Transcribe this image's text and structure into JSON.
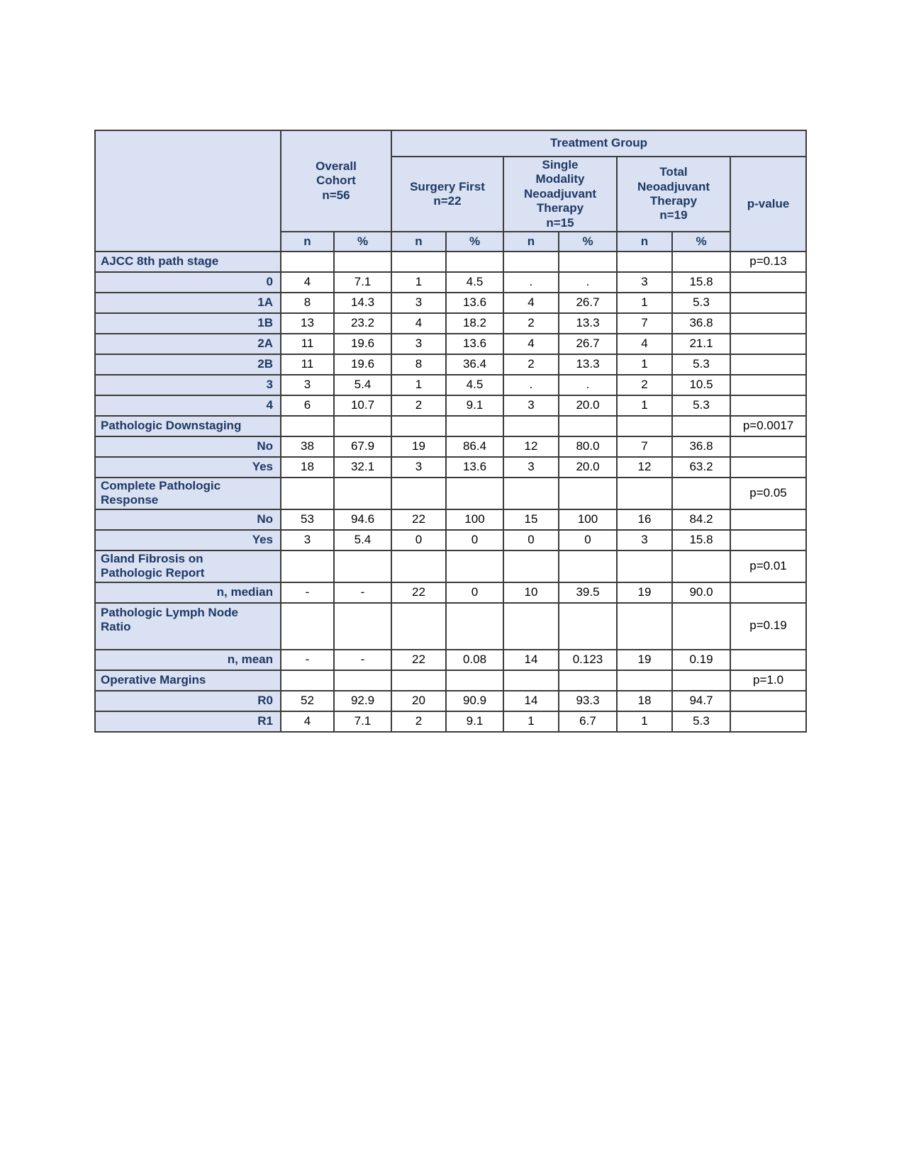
{
  "colors": {
    "header_fill": "#d9e1f2",
    "header_text": "#1f3864",
    "grid_line": "#3b3b3b",
    "data_text": "#000000"
  },
  "header": {
    "treatment_group_label": "Treatment Group",
    "p_value_label": "p-value",
    "groups": [
      {
        "name": "Overall\nCohort\nn=56"
      },
      {
        "name": "Surgery First\nn=22"
      },
      {
        "name": "Single\nModality\nNeoadjuvant\nTherapy\nn=15"
      },
      {
        "name": "Total\nNeoadjuvant\nTherapy\nn=19"
      }
    ],
    "sub_headers": [
      "n",
      "%",
      "n",
      "%",
      "n",
      "%",
      "n",
      "%"
    ]
  },
  "rows": [
    {
      "type": "category",
      "label": "AJCC 8th path stage",
      "cells": [
        "",
        "",
        "",
        "",
        "",
        "",
        "",
        ""
      ],
      "p": "p=0.13"
    },
    {
      "type": "sub",
      "label": "0",
      "cells": [
        "4",
        "7.1",
        "1",
        "4.5",
        ".",
        ".",
        "3",
        "15.8"
      ],
      "p": ""
    },
    {
      "type": "sub",
      "label": "1A",
      "cells": [
        "8",
        "14.3",
        "3",
        "13.6",
        "4",
        "26.7",
        "1",
        "5.3"
      ],
      "p": ""
    },
    {
      "type": "sub",
      "label": "1B",
      "cells": [
        "13",
        "23.2",
        "4",
        "18.2",
        "2",
        "13.3",
        "7",
        "36.8"
      ],
      "p": ""
    },
    {
      "type": "sub",
      "label": "2A",
      "cells": [
        "11",
        "19.6",
        "3",
        "13.6",
        "4",
        "26.7",
        "4",
        "21.1"
      ],
      "p": ""
    },
    {
      "type": "sub",
      "label": "2B",
      "cells": [
        "11",
        "19.6",
        "8",
        "36.4",
        "2",
        "13.3",
        "1",
        "5.3"
      ],
      "p": ""
    },
    {
      "type": "sub",
      "label": "3",
      "cells": [
        "3",
        "5.4",
        "1",
        "4.5",
        ".",
        ".",
        "2",
        "10.5"
      ],
      "p": ""
    },
    {
      "type": "sub",
      "label": "4",
      "cells": [
        "6",
        "10.7",
        "2",
        "9.1",
        "3",
        "20.0",
        "1",
        "5.3"
      ],
      "p": ""
    },
    {
      "type": "category",
      "label": "Pathologic Downstaging",
      "cells": [
        "",
        "",
        "",
        "",
        "",
        "",
        "",
        ""
      ],
      "p": "p=0.0017"
    },
    {
      "type": "sub",
      "label": "No",
      "cells": [
        "38",
        "67.9",
        "19",
        "86.4",
        "12",
        "80.0",
        "7",
        "36.8"
      ],
      "p": ""
    },
    {
      "type": "sub",
      "label": "Yes",
      "cells": [
        "18",
        "32.1",
        "3",
        "13.6",
        "3",
        "20.0",
        "12",
        "63.2"
      ],
      "p": ""
    },
    {
      "type": "category",
      "label": "Complete Pathologic\nResponse",
      "cells": [
        "",
        "",
        "",
        "",
        "",
        "",
        "",
        ""
      ],
      "p": "p=0.05"
    },
    {
      "type": "sub",
      "label": "No",
      "cells": [
        "53",
        "94.6",
        "22",
        "100",
        "15",
        "100",
        "16",
        "84.2"
      ],
      "p": ""
    },
    {
      "type": "sub",
      "label": "Yes",
      "cells": [
        "3",
        "5.4",
        "0",
        "0",
        "0",
        "0",
        "3",
        "15.8"
      ],
      "p": ""
    },
    {
      "type": "category",
      "label": "Gland Fibrosis on\nPathologic Report",
      "cells": [
        "",
        "",
        "",
        "",
        "",
        "",
        "",
        ""
      ],
      "p": "p=0.01"
    },
    {
      "type": "sub",
      "label": "n, median",
      "cells": [
        "-",
        "-",
        "22",
        "0",
        "10",
        "39.5",
        "19",
        "90.0"
      ],
      "p": ""
    },
    {
      "type": "category",
      "label": "Pathologic Lymph Node\nRatio",
      "cells": [
        "",
        "",
        "",
        "",
        "",
        "",
        "",
        ""
      ],
      "p": "p=0.19"
    },
    {
      "type": "sub",
      "label": "n, mean",
      "cells": [
        "-",
        "-",
        "22",
        "0.08",
        "14",
        "0.123",
        "19",
        "0.19"
      ],
      "p": ""
    },
    {
      "type": "category",
      "label": "Operative Margins",
      "cells": [
        "",
        "",
        "",
        "",
        "",
        "",
        "",
        ""
      ],
      "p": "p=1.0"
    },
    {
      "type": "sub",
      "label": "R0",
      "cells": [
        "52",
        "92.9",
        "20",
        "90.9",
        "14",
        "93.3",
        "18",
        "94.7"
      ],
      "p": ""
    },
    {
      "type": "sub",
      "label": "R1",
      "cells": [
        "4",
        "7.1",
        "2",
        "9.1",
        "1",
        "6.7",
        "1",
        "5.3"
      ],
      "p": ""
    }
  ]
}
